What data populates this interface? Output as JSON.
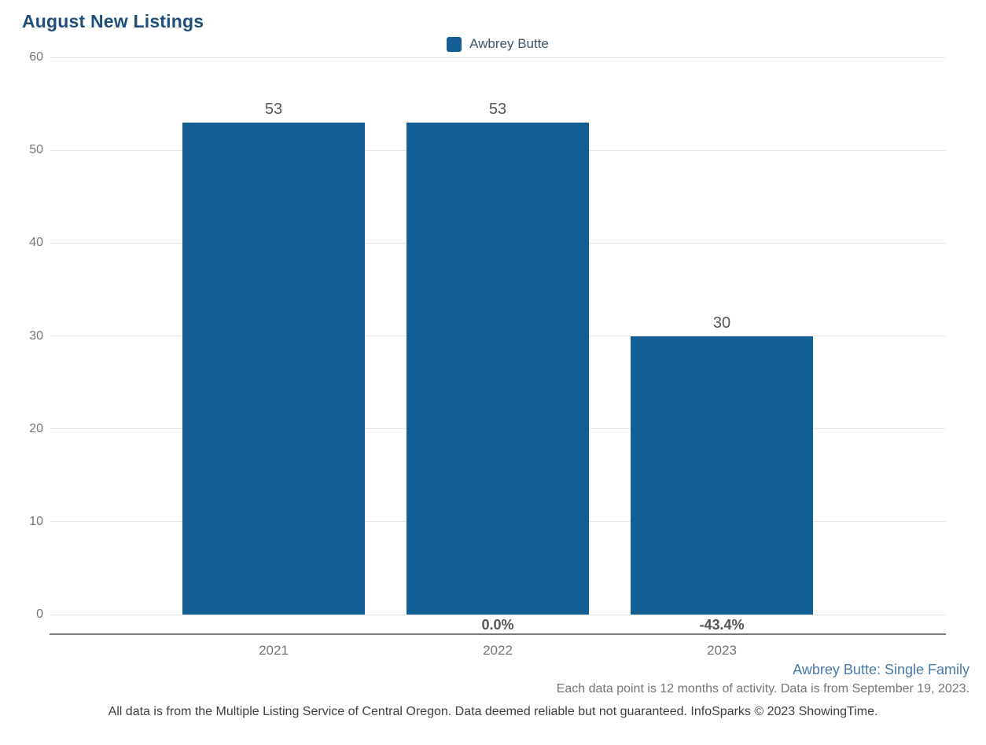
{
  "title": "August New Listings",
  "legend": {
    "label": "Awbrey Butte",
    "swatch_color": "#135f94"
  },
  "chart_data": {
    "type": "bar",
    "title": "August New Listings",
    "categories": [
      "2021",
      "2022",
      "2023"
    ],
    "series": [
      {
        "name": "Awbrey Butte",
        "values": [
          53,
          53,
          30
        ]
      }
    ],
    "value_labels": [
      "53",
      "53",
      "30"
    ],
    "pct_change_labels": [
      "",
      "0.0%",
      "-43.4%"
    ],
    "xlabel": "",
    "ylabel": "",
    "ylim": [
      0,
      60
    ],
    "yticks": [
      0,
      10,
      20,
      30,
      40,
      50,
      60
    ],
    "grid": true,
    "legend_position": "top-center",
    "bar_color": "#135f94"
  },
  "footer": {
    "series_note": "Awbrey Butte: Single Family",
    "data_note": "Each data point is 12 months of activity. Data is from September 19, 2023.",
    "disclaimer": "All data is from the Multiple Listing Service of Central Oregon. Data deemed reliable but not guaranteed. InfoSparks © 2023 ShowingTime."
  },
  "colors": {
    "title_text": "#1f4e79",
    "bar": "#135f94",
    "gridline": "#e6e6e6",
    "axis_line": "#7a7a7a",
    "tick_text": "#757575",
    "value_label_text": "#555555",
    "series_note_text": "#4a7ba6"
  }
}
